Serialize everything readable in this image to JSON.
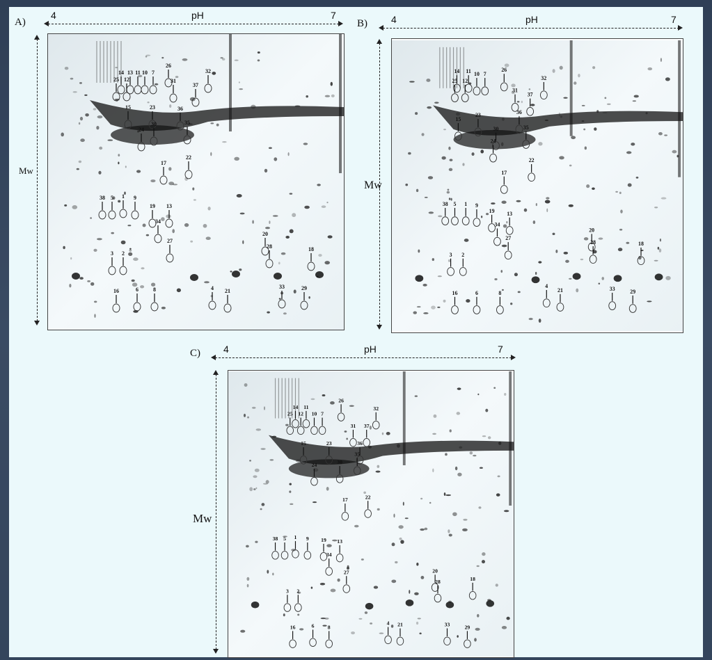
{
  "figure": {
    "panels": [
      {
        "label": "A)",
        "ph_label": "pH",
        "ph_min": "4",
        "ph_max": "7",
        "mw_label": "Mw",
        "spots": [
          "14",
          "13",
          "11",
          "10",
          "7",
          "25",
          "12",
          "26",
          "32",
          "31",
          "37",
          "15",
          "23",
          "36",
          "30",
          "24",
          "35",
          "22",
          "17",
          "38",
          "5",
          "1",
          "9",
          "19",
          "13",
          "34",
          "27",
          "20",
          "28",
          "18",
          "3",
          "2",
          "16",
          "6",
          "8",
          "4",
          "21",
          "33",
          "29"
        ]
      },
      {
        "label": "B)",
        "ph_label": "pH",
        "ph_min": "4",
        "ph_max": "7",
        "mw_label": "Mw",
        "spots": [
          "14",
          "11",
          "10",
          "7",
          "25",
          "12",
          "26",
          "32",
          "31",
          "37",
          "36",
          "15",
          "23",
          "30",
          "35",
          "24",
          "22",
          "17",
          "38",
          "5",
          "1",
          "9",
          "19",
          "13",
          "34",
          "27",
          "20",
          "28",
          "18",
          "3",
          "2",
          "16",
          "6",
          "8",
          "4",
          "21",
          "33",
          "29"
        ]
      },
      {
        "label": "C)",
        "ph_label": "pH",
        "ph_min": "4",
        "ph_max": "7",
        "mw_label": "Mw",
        "spots": [
          "14",
          "11",
          "25",
          "12",
          "10",
          "7",
          "26",
          "32",
          "31",
          "37",
          "15",
          "23",
          "36",
          "35",
          "30",
          "24",
          "22",
          "17",
          "38",
          "5",
          "1",
          "9",
          "19",
          "13",
          "34",
          "27",
          "20",
          "28",
          "18",
          "3",
          "2",
          "16",
          "6",
          "8",
          "4",
          "21",
          "33",
          "29"
        ]
      }
    ],
    "colors": {
      "background": "#2f3f56",
      "figure_bg": "#ebf9fb",
      "gel_bg": "#ffffff",
      "spot": "#111111"
    }
  }
}
